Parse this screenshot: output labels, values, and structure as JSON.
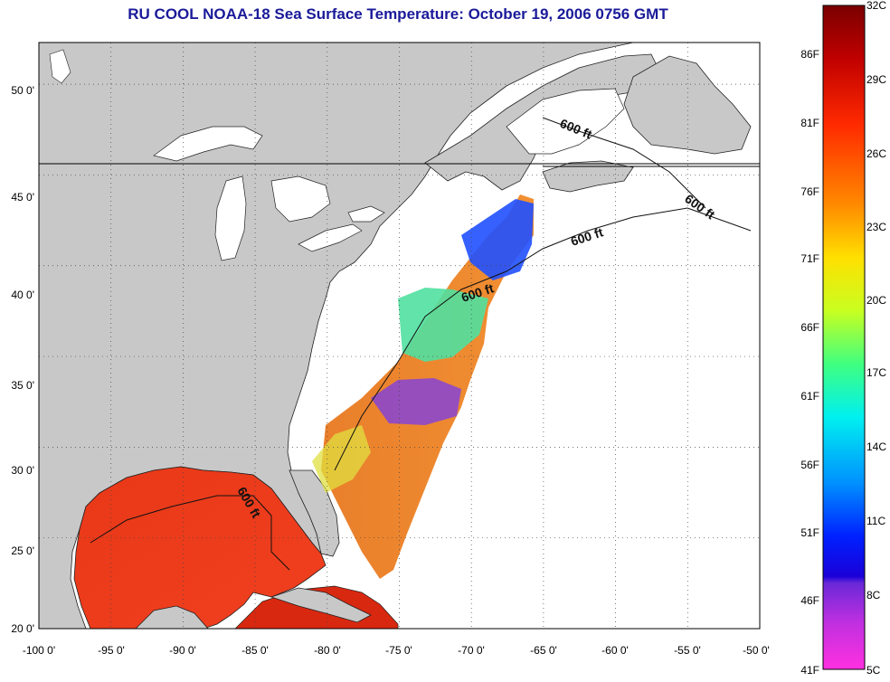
{
  "title": "RU COOL  NOAA-18  Sea Surface Temperature:  October 19, 2006 0756 GMT",
  "map": {
    "lon_labels": [
      "-100 0'",
      "-95 0'",
      "-90 0'",
      "-85 0'",
      "-80 0'",
      "-75 0'",
      "-70 0'",
      "-65 0'",
      "-60 0'",
      "-55 0'",
      "-50 0'"
    ],
    "lat_labels": [
      "50 0'",
      "45 0'",
      "40 0'",
      "35 0'",
      "30 0'",
      "25 0'",
      "20 0'"
    ],
    "lon_range": [
      -100,
      -50
    ],
    "lat_range": [
      20,
      52.3
    ],
    "isobath_label": "600 ft",
    "colors": {
      "land": "#c8c8c8",
      "ocean_nodata": "#ffffff",
      "gulf_sst": "#e8301a",
      "gridline": "#555555"
    }
  },
  "colorbar": {
    "celsius_labels": [
      "32C",
      "29C",
      "26C",
      "23C",
      "20C",
      "17C",
      "14C",
      "11C",
      "8C",
      "5C"
    ],
    "fahrenheit_labels": [
      "86F",
      "81F",
      "76F",
      "71F",
      "66F",
      "61F",
      "56F",
      "51F",
      "46F",
      "41F"
    ],
    "range_c": [
      5,
      32
    ],
    "range_f": [
      41,
      89.6
    ]
  }
}
